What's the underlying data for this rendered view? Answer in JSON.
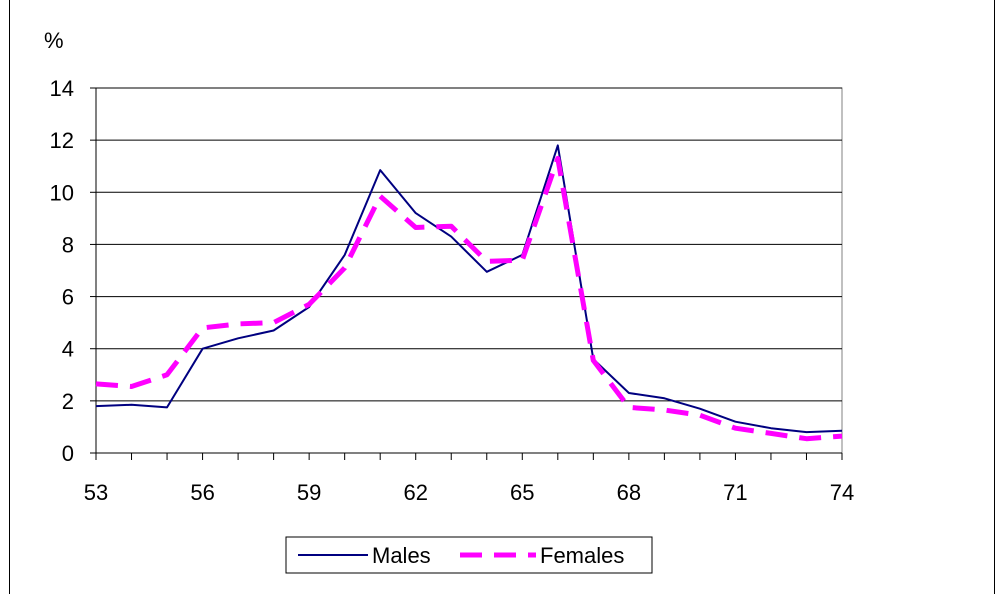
{
  "chart_data": {
    "type": "line",
    "ylabel": "%",
    "xlim": [
      53,
      74
    ],
    "ylim": [
      0,
      14
    ],
    "x_ticks": [
      53,
      56,
      59,
      62,
      65,
      68,
      71,
      74
    ],
    "y_ticks": [
      0,
      2,
      4,
      6,
      8,
      10,
      12,
      14
    ],
    "grid": "horizontal",
    "legend_position": "bottom",
    "x": [
      53,
      54,
      55,
      56,
      57,
      58,
      59,
      60,
      61,
      62,
      63,
      64,
      65,
      66,
      67,
      68,
      69,
      70,
      71,
      72,
      73,
      74
    ],
    "series": [
      {
        "name": "Males",
        "color": "#000080",
        "style": "solid",
        "values": [
          1.8,
          1.85,
          1.75,
          4.0,
          4.4,
          4.7,
          5.6,
          7.6,
          10.85,
          9.2,
          8.3,
          6.95,
          7.6,
          11.8,
          3.6,
          2.3,
          2.1,
          1.7,
          1.2,
          0.95,
          0.8,
          0.85
        ]
      },
      {
        "name": "Females",
        "color": "#FF00FF",
        "style": "dashed",
        "values": [
          2.65,
          2.55,
          3.0,
          4.8,
          4.95,
          5.0,
          5.7,
          7.1,
          9.85,
          8.65,
          8.7,
          7.35,
          7.4,
          11.3,
          3.55,
          1.75,
          1.65,
          1.45,
          0.95,
          0.75,
          0.55,
          0.65
        ]
      }
    ]
  }
}
